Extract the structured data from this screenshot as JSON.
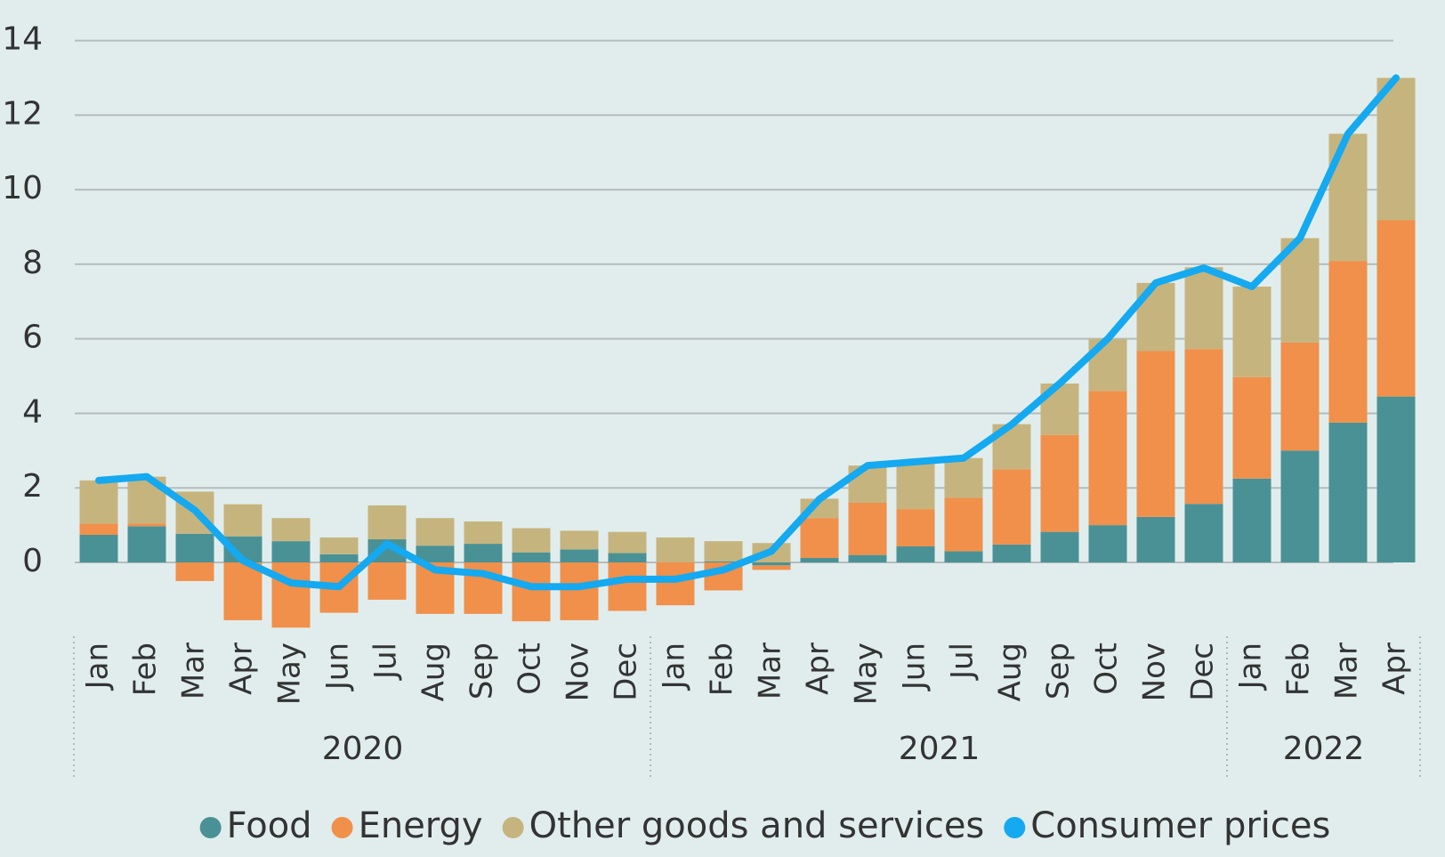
{
  "chart_data": {
    "type": "bar",
    "stacked": true,
    "categories": [
      "Jan",
      "Feb",
      "Mar",
      "Apr",
      "May",
      "Jun",
      "Jul",
      "Aug",
      "Sep",
      "Oct",
      "Nov",
      "Dec",
      "Jan",
      "Feb",
      "Mar",
      "Apr",
      "May",
      "Jun",
      "Jul",
      "Aug",
      "Sep",
      "Oct",
      "Nov",
      "Dec",
      "Jan",
      "Feb",
      "Mar",
      "Apr"
    ],
    "years": [
      "2020",
      "2021",
      "2022"
    ],
    "ylim": [
      -2,
      14
    ],
    "yticks": [
      0,
      2,
      4,
      6,
      8,
      10,
      12,
      14
    ],
    "grid": true,
    "legend": "bottom",
    "series": [
      {
        "name": "Food",
        "color": "#4a9196",
        "values": [
          0.74,
          0.97,
          0.77,
          0.7,
          0.57,
          0.22,
          0.62,
          0.45,
          0.5,
          0.27,
          0.35,
          0.25,
          0,
          0.03,
          -0.08,
          0.12,
          0.2,
          0.43,
          0.3,
          0.48,
          0.82,
          1.0,
          1.22,
          1.57,
          2.25,
          3.0,
          3.75,
          4.45
        ]
      },
      {
        "name": "Energy",
        "color": "#f0904a",
        "values": [
          0.3,
          0.07,
          -0.5,
          -1.55,
          -1.75,
          -1.35,
          -1.0,
          -1.38,
          -1.38,
          -1.58,
          -1.55,
          -1.3,
          -1.15,
          -0.75,
          -0.12,
          1.07,
          1.4,
          1.0,
          1.43,
          2.02,
          2.6,
          3.6,
          4.45,
          4.15,
          2.72,
          2.9,
          4.34,
          4.73
        ]
      },
      {
        "name": "Other goods and services",
        "color": "#c6b47e",
        "values": [
          1.16,
          1.26,
          1.13,
          0.86,
          0.62,
          0.45,
          0.91,
          0.74,
          0.6,
          0.65,
          0.5,
          0.57,
          0.67,
          0.54,
          0.52,
          0.52,
          1.0,
          1.22,
          1.07,
          1.21,
          1.38,
          1.39,
          1.83,
          2.2,
          2.43,
          2.8,
          3.41,
          3.82
        ]
      },
      {
        "name": "Consumer prices",
        "color": "#14a9f0",
        "type": "line",
        "values": [
          2.2,
          2.3,
          1.4,
          0.05,
          -0.55,
          -0.65,
          0.5,
          -0.2,
          -0.3,
          -0.65,
          -0.65,
          -0.45,
          -0.45,
          -0.2,
          0.3,
          1.7,
          2.6,
          2.7,
          2.8,
          3.7,
          4.8,
          6.0,
          7.5,
          7.9,
          7.4,
          8.7,
          11.5,
          13.0
        ]
      }
    ]
  }
}
